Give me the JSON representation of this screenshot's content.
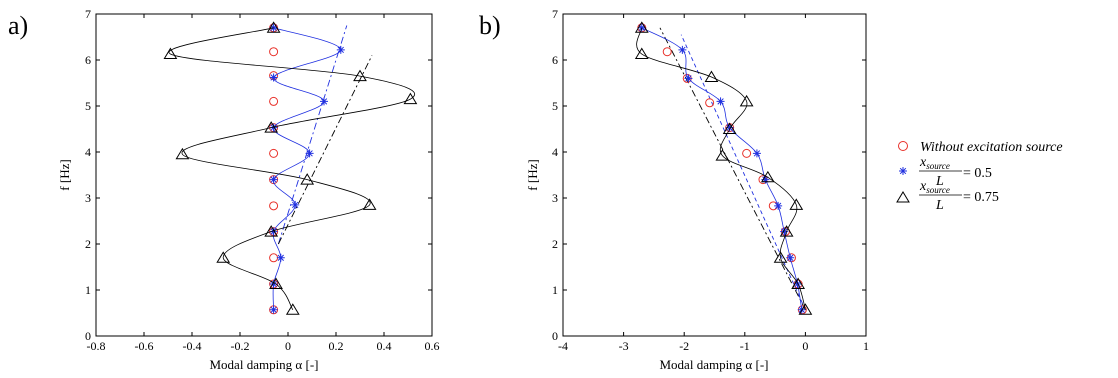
{
  "chart_data": [
    {
      "type": "line",
      "panel_label": "a)",
      "xlabel": "Modal damping  α [-]",
      "ylabel": "f [Hz]",
      "xlim": [
        -0.8,
        0.6
      ],
      "ylim": [
        0,
        7
      ],
      "xticks": [
        "-0.8",
        "-0.6",
        "-0.4",
        "-0.2",
        "0",
        "0.2",
        "0.4",
        "0.6"
      ],
      "yticks": [
        "0",
        "1",
        "2",
        "3",
        "4",
        "5",
        "6",
        "7"
      ],
      "series": [
        {
          "name": "Without excitation source",
          "marker": "circle",
          "color": "#e8312a",
          "points": [
            [
              -0.06,
              0.57
            ],
            [
              -0.06,
              1.13
            ],
            [
              -0.06,
              1.7
            ],
            [
              -0.06,
              2.27
            ],
            [
              -0.06,
              2.83
            ],
            [
              -0.06,
              3.4
            ],
            [
              -0.06,
              3.97
            ],
            [
              -0.06,
              4.53
            ],
            [
              -0.06,
              5.1
            ],
            [
              -0.06,
              5.66
            ],
            [
              -0.06,
              6.18
            ],
            [
              -0.06,
              6.7
            ]
          ]
        },
        {
          "name": "x_source/L = 0.5",
          "marker": "star",
          "color": "#2030e0",
          "points": [
            [
              -0.06,
              0.57
            ],
            [
              -0.06,
              1.13
            ],
            [
              -0.03,
              1.7
            ],
            [
              -0.06,
              2.27
            ],
            [
              0.03,
              2.85
            ],
            [
              -0.06,
              3.4
            ],
            [
              0.09,
              3.97
            ],
            [
              -0.06,
              4.53
            ],
            [
              0.15,
              5.1
            ],
            [
              -0.06,
              5.62
            ],
            [
              0.22,
              6.22
            ],
            [
              -0.06,
              6.7
            ]
          ]
        },
        {
          "name": "x_source/L = 0.75",
          "marker": "triangle",
          "color": "#000000",
          "points": [
            [
              0.02,
              0.57
            ],
            [
              -0.05,
              1.13
            ],
            [
              -0.27,
              1.7
            ],
            [
              -0.07,
              2.27
            ],
            [
              0.34,
              2.85
            ],
            [
              0.08,
              3.4
            ],
            [
              -0.44,
              3.95
            ],
            [
              -0.07,
              4.53
            ],
            [
              0.51,
              5.15
            ],
            [
              0.3,
              5.65
            ],
            [
              -0.49,
              6.13
            ],
            [
              -0.06,
              6.7
            ]
          ]
        }
      ],
      "fits": [
        {
          "style": "dash-dot",
          "color": "#2030e0",
          "points": [
            [
              -0.04,
              2.0
            ],
            [
              0.245,
              6.75
            ]
          ]
        },
        {
          "style": "dash-dot",
          "color": "#000000",
          "points": [
            [
              -0.04,
              2.0
            ],
            [
              0.35,
              6.1
            ]
          ]
        }
      ]
    },
    {
      "type": "line",
      "panel_label": "b)",
      "xlabel": "Modal damping  α [-]",
      "ylabel": "f [Hz]",
      "xlim": [
        -4,
        1
      ],
      "ylim": [
        0,
        7
      ],
      "xticks": [
        "-4",
        "-3",
        "-2",
        "-1",
        "0",
        "1"
      ],
      "yticks": [
        "0",
        "1",
        "2",
        "3",
        "4",
        "5",
        "6",
        "7"
      ],
      "series": [
        {
          "name": "Without excitation source",
          "marker": "circle",
          "color": "#e8312a",
          "points": [
            [
              -0.05,
              0.57
            ],
            [
              -0.12,
              1.13
            ],
            [
              -0.23,
              1.7
            ],
            [
              -0.33,
              2.27
            ],
            [
              -0.53,
              2.83
            ],
            [
              -0.7,
              3.4
            ],
            [
              -0.97,
              3.97
            ],
            [
              -1.25,
              4.53
            ],
            [
              -1.58,
              5.07
            ],
            [
              -1.95,
              5.6
            ],
            [
              -2.28,
              6.18
            ],
            [
              -2.7,
              6.7
            ]
          ]
        },
        {
          "name": "x_source/L = 0.5",
          "marker": "star",
          "color": "#2030e0",
          "points": [
            [
              -0.06,
              0.57
            ],
            [
              -0.13,
              1.13
            ],
            [
              -0.25,
              1.7
            ],
            [
              -0.35,
              2.27
            ],
            [
              -0.45,
              2.83
            ],
            [
              -0.66,
              3.4
            ],
            [
              -0.8,
              3.97
            ],
            [
              -1.25,
              4.53
            ],
            [
              -1.4,
              5.1
            ],
            [
              -1.93,
              5.6
            ],
            [
              -2.03,
              6.22
            ],
            [
              -2.7,
              6.7
            ]
          ]
        },
        {
          "name": "x_source/L = 0.75",
          "marker": "triangle",
          "color": "#000000",
          "points": [
            [
              0.0,
              0.57
            ],
            [
              -0.12,
              1.13
            ],
            [
              -0.41,
              1.7
            ],
            [
              -0.31,
              2.27
            ],
            [
              -0.15,
              2.85
            ],
            [
              -0.62,
              3.45
            ],
            [
              -1.37,
              3.92
            ],
            [
              -1.25,
              4.5
            ],
            [
              -0.97,
              5.1
            ],
            [
              -1.55,
              5.63
            ],
            [
              -2.7,
              6.13
            ],
            [
              -2.7,
              6.7
            ]
          ]
        }
      ],
      "fits": [
        {
          "style": "dash",
          "color": "#2030e0",
          "points": [
            [
              0.0,
              0.57
            ],
            [
              -2.05,
              6.55
            ]
          ]
        },
        {
          "style": "dash-dot",
          "color": "#000000",
          "points": [
            [
              0.0,
              0.57
            ],
            [
              -2.4,
              6.7
            ]
          ]
        }
      ]
    }
  ],
  "legend": {
    "position": "right",
    "items": [
      {
        "marker": "circle",
        "color": "#e8312a",
        "text": "Without excitation source"
      },
      {
        "marker": "star",
        "color": "#2030e0",
        "numerator": "x",
        "numerator_sub": "source",
        "denominator": "L",
        "equals": "= 0.5"
      },
      {
        "marker": "triangle",
        "color": "#000000",
        "numerator": "x",
        "numerator_sub": "source",
        "denominator": "L",
        "equals": "= 0.75"
      }
    ]
  }
}
